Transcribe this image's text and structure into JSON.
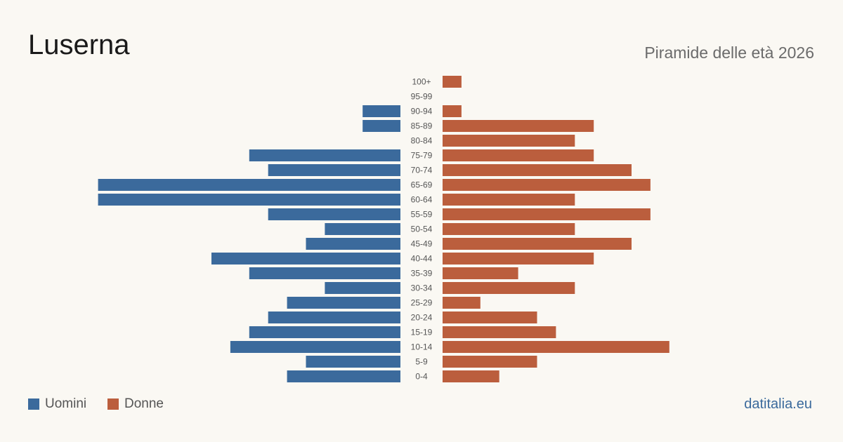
{
  "title": "Luserna",
  "subtitle": "Piramide delle età 2026",
  "source": "datitalia.eu",
  "legend": {
    "men": "Uomini",
    "women": "Donne"
  },
  "colors": {
    "men": "#3b6a9c",
    "women": "#bb5e3d",
    "background": "#faf8f3"
  },
  "chart_data": {
    "type": "bar",
    "orientation": "horizontal-population-pyramid",
    "categories": [
      "100+",
      "95-99",
      "90-94",
      "85-89",
      "80-84",
      "75-79",
      "70-74",
      "65-69",
      "60-64",
      "55-59",
      "50-54",
      "45-49",
      "40-44",
      "35-39",
      "30-34",
      "25-29",
      "20-24",
      "15-19",
      "10-14",
      "5-9",
      "0-4"
    ],
    "series": [
      {
        "name": "Uomini",
        "side": "left",
        "values": [
          0,
          0,
          2,
          2,
          0,
          8,
          7,
          16,
          16,
          7,
          4,
          5,
          10,
          8,
          4,
          6,
          7,
          8,
          9,
          5,
          6
        ]
      },
      {
        "name": "Donne",
        "side": "right",
        "values": [
          1,
          0,
          1,
          8,
          7,
          8,
          10,
          11,
          7,
          11,
          7,
          10,
          8,
          4,
          7,
          2,
          5,
          6,
          12,
          5,
          3
        ]
      }
    ],
    "grid": false,
    "legend_position": "bottom-left"
  }
}
